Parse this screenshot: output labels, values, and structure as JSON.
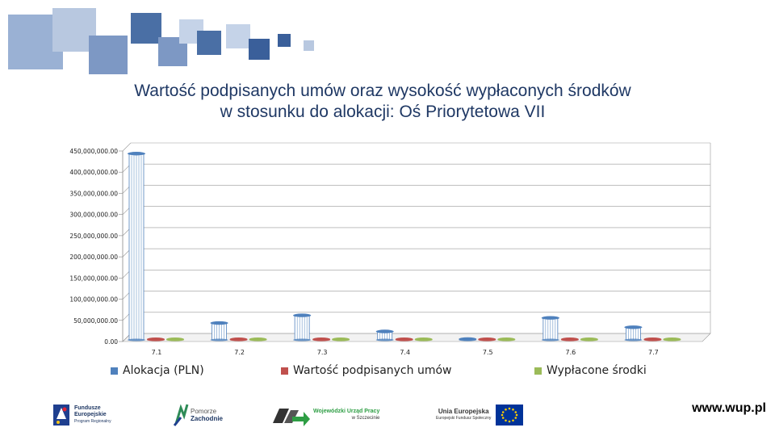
{
  "header_decoration": {
    "colors": [
      "#4a6fa5",
      "#8fa8cf",
      "#c5d3e8",
      "#3a5f9a"
    ]
  },
  "chart_title": {
    "line1": "Wartość podpisanych umów oraz wysokość wypłaconych środków",
    "line2": "w stosunku do alokacji: Oś Priorytetowa VII"
  },
  "chart_data": {
    "type": "bar",
    "title": "Wartość podpisanych umów oraz wysokość wypłaconych środków w stosunku do alokacji: Oś Priorytetowa VII",
    "categories": [
      "7.1",
      "7.2",
      "7.3",
      "7.4",
      "7.5",
      "7.6",
      "7.7"
    ],
    "ylim": [
      0,
      450000000
    ],
    "yticks": [
      "0.00",
      "50,000,000.00",
      "100,000,000.00",
      "150,000,000.00",
      "200,000,000.00",
      "250,000,000.00",
      "300,000,000.00",
      "350,000,000.00",
      "400,000,000.00",
      "450,000,000.00"
    ],
    "grid": true,
    "legend_position": "bottom",
    "series": [
      {
        "name": "Alokacja (PLN)",
        "color": "#4f81bd",
        "values": [
          440000000,
          40000000,
          58000000,
          20000000,
          2000000,
          52000000,
          30000000
        ]
      },
      {
        "name": "Wartość podpisanych umów",
        "color": "#c0504d",
        "values": [
          0,
          0,
          0,
          0,
          0,
          0,
          0
        ]
      },
      {
        "name": "Wypłacone środki",
        "color": "#9bbb59",
        "values": [
          0,
          0,
          0,
          0,
          0,
          0,
          0
        ]
      }
    ]
  },
  "logos": {
    "fe": {
      "line1": "Fundusze",
      "line2": "Europejskie",
      "line3": "Program Regionalny"
    },
    "pomorze": {
      "line1": "Pomorze",
      "line2": "Zachodnie"
    },
    "wup": {
      "line1": "Wojewódzki Urząd Pracy",
      "line2": "w Szczecinie"
    },
    "ue": {
      "line1": "Unia Europejska",
      "line2": "Europejski Fundusz Społeczny"
    }
  },
  "website": "www.wup.pl"
}
